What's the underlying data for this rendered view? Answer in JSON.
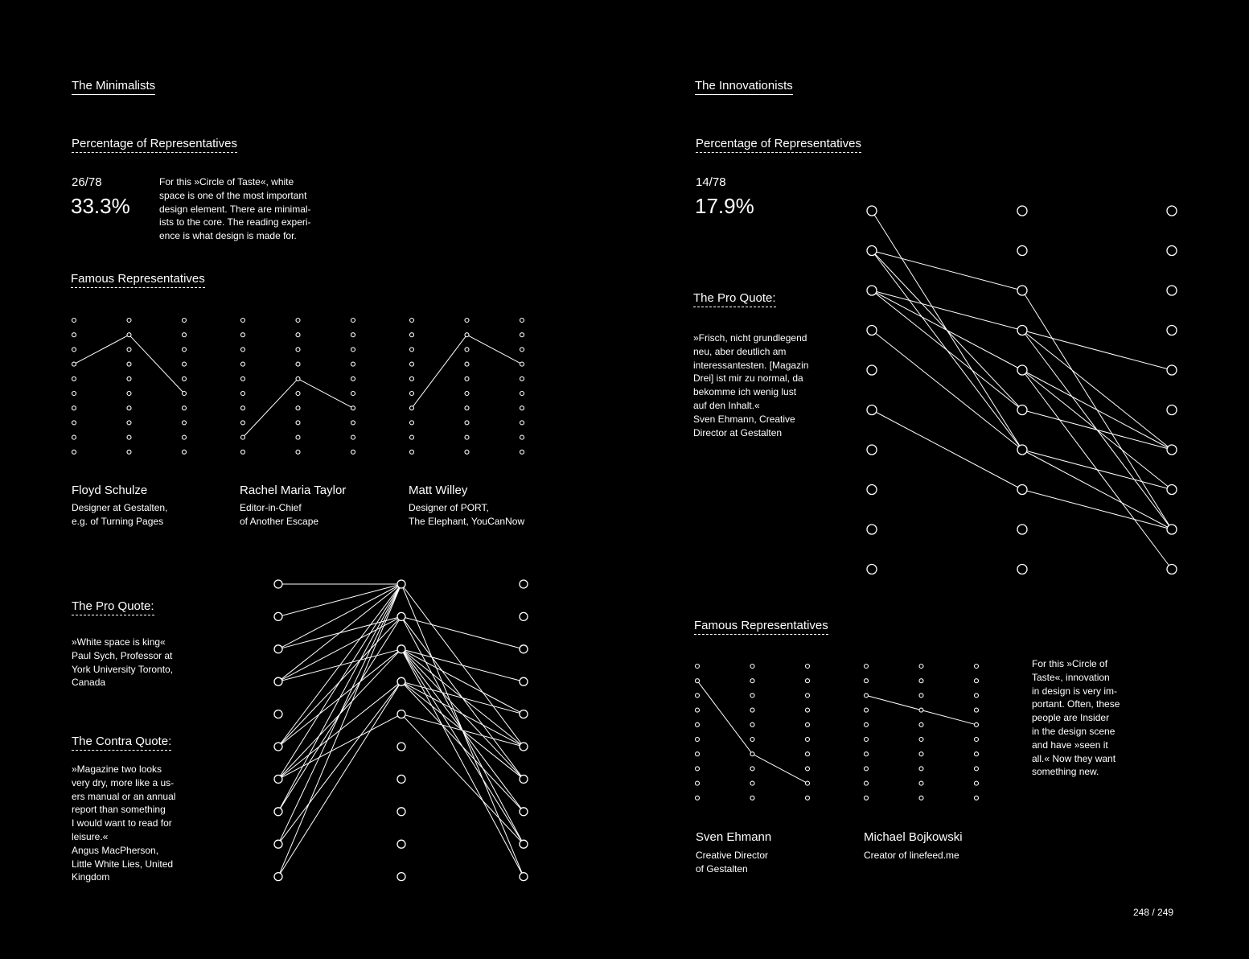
{
  "left": {
    "section_title": "The Minimalists",
    "percentage_heading": "Percentage of Representatives",
    "fraction": "26/78",
    "percent": "33.3%",
    "description": [
      "For this »Circle of Taste«, white",
      "space is one of the most important",
      "design element. There are minimal-",
      "ists to the core. The reading experi-",
      "ence is what design is made for."
    ],
    "famous_heading": "Famous Representatives",
    "people": [
      {
        "name": "Floyd Schulze",
        "role": [
          "Designer at Gestalten,",
          "e.g. of Turning Pages"
        ],
        "picks": [
          3,
          1,
          5
        ]
      },
      {
        "name": "Rachel Maria Taylor",
        "role": [
          "Editor-in-Chief",
          "of Another Escape"
        ],
        "picks": [
          8,
          4,
          6
        ]
      },
      {
        "name": "Matt Willey",
        "role": [
          "Designer of PORT,",
          "The Elephant, YouCanNow"
        ],
        "picks": [
          6,
          1,
          3
        ]
      }
    ],
    "pro_quote_heading": "The Pro Quote:",
    "pro_quote": [
      "»White space is king«",
      "Paul Sych, Professor at",
      "York University Toronto,",
      "Canada"
    ],
    "contra_quote_heading": "The Contra Quote:",
    "contra_quote": [
      "»Magazine two looks",
      "very dry, more like a us-",
      "ers manual or an annual",
      "report than something",
      "I would want to read for",
      "leisure.«",
      "Angus MacPherson,",
      "Little White Lies, United",
      "Kingdom"
    ],
    "network": [
      [
        9,
        0
      ],
      [
        8,
        0
      ],
      [
        7,
        0
      ],
      [
        6,
        0
      ],
      [
        5,
        0
      ],
      [
        3,
        0
      ],
      [
        7,
        1
      ],
      [
        5,
        1
      ],
      [
        6,
        2
      ],
      [
        3,
        1
      ],
      [
        2,
        1
      ],
      [
        3,
        2
      ],
      [
        9,
        3
      ],
      [
        8,
        3
      ],
      [
        6,
        3
      ],
      [
        5,
        2
      ],
      [
        6,
        4
      ],
      [
        0,
        0
      ],
      [
        1,
        0
      ],
      [
        2,
        0
      ]
    ],
    "network_right": [
      [
        0,
        9
      ],
      [
        0,
        5
      ],
      [
        1,
        8
      ],
      [
        1,
        6
      ],
      [
        1,
        2
      ],
      [
        2,
        5
      ],
      [
        2,
        3
      ],
      [
        2,
        9
      ],
      [
        2,
        4
      ],
      [
        2,
        6
      ],
      [
        2,
        7
      ],
      [
        3,
        5
      ],
      [
        3,
        7
      ],
      [
        3,
        4
      ],
      [
        4,
        8
      ],
      [
        4,
        5
      ],
      [
        2,
        8
      ],
      [
        3,
        6
      ]
    ]
  },
  "right": {
    "section_title": "The Innovationists",
    "percentage_heading": "Percentage of Representatives",
    "fraction": "14/78",
    "percent": "17.9%",
    "pro_quote_heading": "The Pro Quote:",
    "pro_quote": [
      "»Frisch, nicht grundlegend",
      "neu, aber deutlich am",
      "interessantesten. [Magazin",
      "Drei] ist mir zu normal, da",
      "bekomme ich wenig lust",
      "auf den Inhalt.«",
      "Sven Ehmann, Creative",
      "Director at Gestalten"
    ],
    "famous_heading": "Famous Representatives",
    "people": [
      {
        "name": "Sven Ehmann",
        "role": [
          "Creative Director",
          "of Gestalten"
        ],
        "picks": [
          1,
          6,
          8
        ]
      },
      {
        "name": "Michael Bojkowski",
        "role": [
          "Creator of linefeed.me"
        ],
        "picks": [
          2,
          3,
          4
        ]
      }
    ],
    "description": [
      "For this »Circle of",
      "Taste«, innovation",
      "in design is very im-",
      "portant. Often, these",
      "people are Insider",
      "in the design scene",
      "and have »seen it",
      "all.« Now they want",
      "something new."
    ],
    "network": [
      [
        0,
        6
      ],
      [
        1,
        2
      ],
      [
        1,
        5
      ],
      [
        1,
        6
      ],
      [
        2,
        3
      ],
      [
        2,
        4
      ],
      [
        2,
        5
      ],
      [
        3,
        6
      ],
      [
        5,
        7
      ]
    ],
    "network_right": [
      [
        2,
        8
      ],
      [
        3,
        4
      ],
      [
        3,
        6
      ],
      [
        3,
        8
      ],
      [
        4,
        6
      ],
      [
        4,
        7
      ],
      [
        4,
        9
      ],
      [
        5,
        6
      ],
      [
        6,
        7
      ],
      [
        6,
        8
      ],
      [
        7,
        8
      ]
    ]
  },
  "page_number": "248 / 249"
}
